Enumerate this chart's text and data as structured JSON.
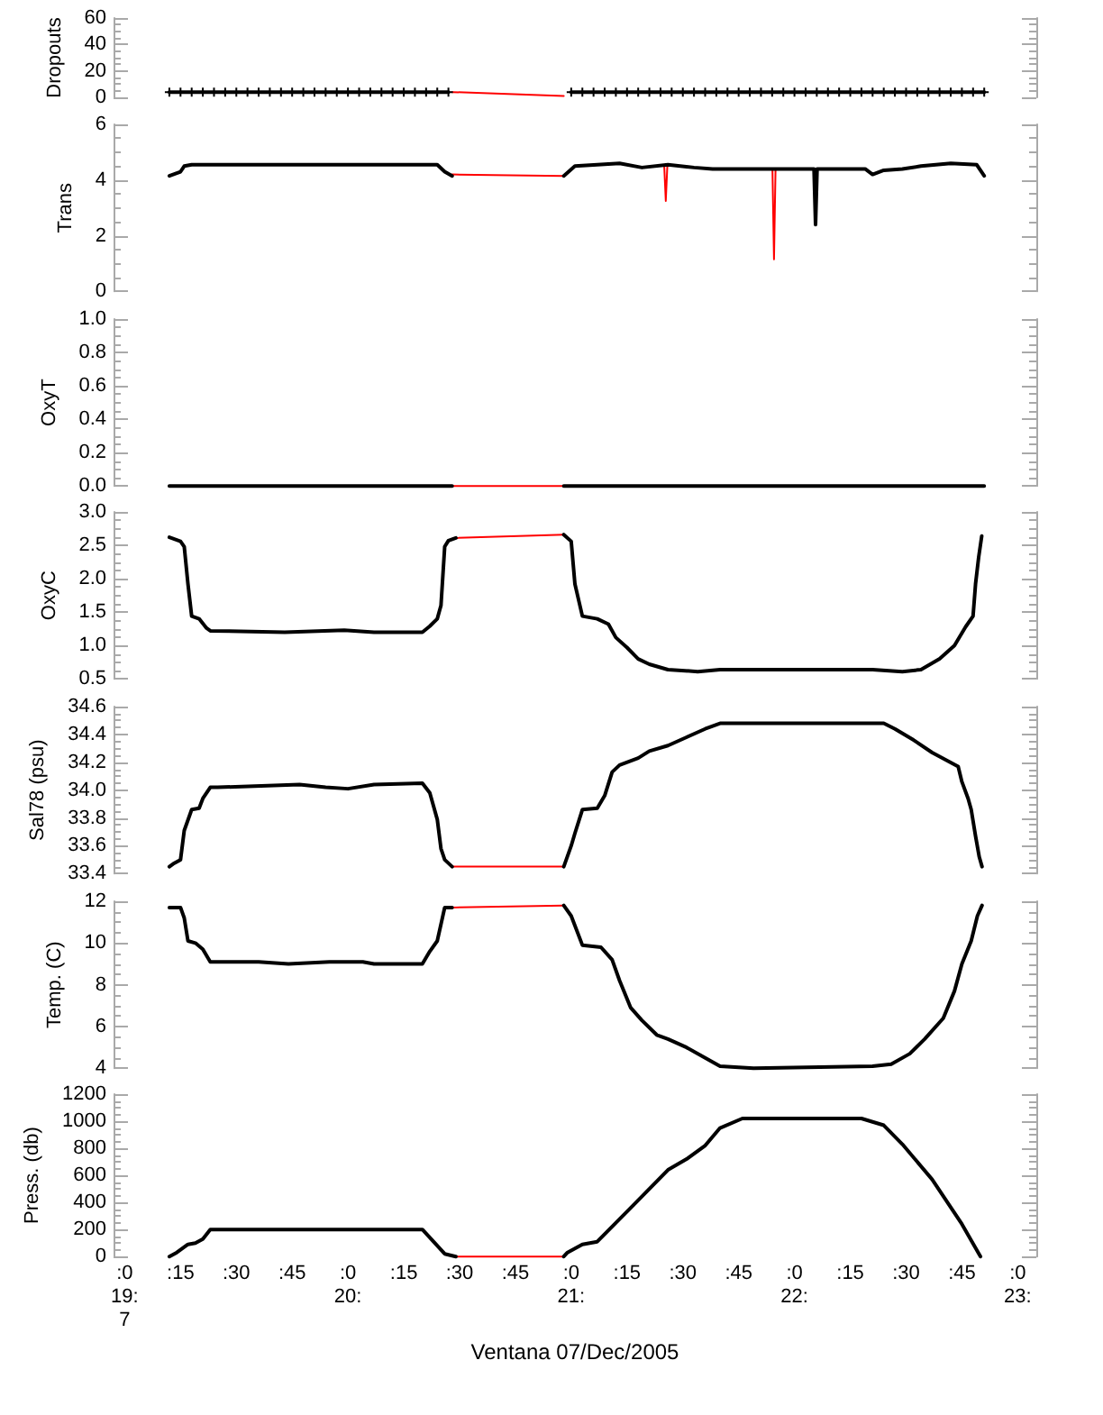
{
  "chart_data": [
    {
      "type": "line",
      "ylabel": "Dropouts",
      "xlim": [
        "2005-12-07T18:57",
        "2005-12-07T23:05"
      ],
      "ylim": [
        0,
        60
      ],
      "yticks": [
        0,
        20,
        40,
        60
      ],
      "tick_labels": "y",
      "series": [
        {
          "color": "#ff0000",
          "x": [
            "2005-12-07T20:28",
            "2005-12-07T20:58"
          ],
          "values": [
            4,
            1
          ]
        },
        {
          "color": "#000000",
          "marker": "cross",
          "x": [
            "2005-12-07T19:12",
            "2005-12-07T19:15",
            "2005-12-07T19:18",
            "2005-12-07T19:21",
            "2005-12-07T19:24",
            "2005-12-07T19:27",
            "2005-12-07T19:30",
            "2005-12-07T19:33",
            "2005-12-07T19:36",
            "2005-12-07T19:39",
            "2005-12-07T19:42",
            "2005-12-07T19:45",
            "2005-12-07T19:48",
            "2005-12-07T19:51",
            "2005-12-07T19:54",
            "2005-12-07T19:57",
            "2005-12-07T20:00",
            "2005-12-07T20:03",
            "2005-12-07T20:06",
            "2005-12-07T20:09",
            "2005-12-07T20:12",
            "2005-12-07T20:15",
            "2005-12-07T20:18",
            "2005-12-07T20:21",
            "2005-12-07T20:24",
            "2005-12-07T20:27",
            "2005-12-07T20:42",
            "2005-12-07T21:00",
            "2005-12-07T21:03",
            "2005-12-07T21:06",
            "2005-12-07T21:09",
            "2005-12-07T21:12",
            "2005-12-07T21:15",
            "2005-12-07T21:18",
            "2005-12-07T21:21",
            "2005-12-07T21:24",
            "2005-12-07T21:27",
            "2005-12-07T21:30",
            "2005-12-07T21:33",
            "2005-12-07T21:36",
            "2005-12-07T21:39",
            "2005-12-07T21:42",
            "2005-12-07T21:45",
            "2005-12-07T21:48",
            "2005-12-07T21:51",
            "2005-12-07T21:54",
            "2005-12-07T21:57",
            "2005-12-07T22:00",
            "2005-12-07T22:03",
            "2005-12-07T22:06",
            "2005-12-07T22:09",
            "2005-12-07T22:12",
            "2005-12-07T22:15",
            "2005-12-07T22:18",
            "2005-12-07T22:21",
            "2005-12-07T22:24",
            "2005-12-07T22:27",
            "2005-12-07T22:30",
            "2005-12-07T22:33",
            "2005-12-07T22:36",
            "2005-12-07T22:39",
            "2005-12-07T22:42",
            "2005-12-07T22:45",
            "2005-12-07T22:48",
            "2005-12-07T22:51"
          ],
          "values": [
            4,
            4,
            4,
            4,
            4,
            4,
            4,
            4,
            4,
            4,
            4,
            4,
            4,
            4,
            4,
            4,
            4,
            4,
            4,
            4,
            4,
            4,
            4,
            4,
            4,
            4,
            null,
            4,
            4,
            4,
            4,
            4,
            4,
            4,
            4,
            4,
            4,
            4,
            4,
            4,
            4,
            4,
            4,
            4,
            4,
            4,
            4,
            4,
            4,
            4,
            4,
            4,
            4,
            4,
            4,
            4,
            4,
            4,
            4,
            4,
            4,
            4,
            4,
            4,
            4
          ]
        }
      ]
    },
    {
      "type": "line",
      "ylabel": "Trans",
      "xlim": [
        "2005-12-07T18:57",
        "2005-12-07T23:05"
      ],
      "ylim": [
        0,
        6
      ],
      "yticks": [
        0,
        2,
        4,
        6
      ],
      "tick_labels": "y",
      "series": [
        {
          "color": "#ff0000",
          "x": [
            "2005-12-07T20:28",
            "2005-12-07T20:58",
            "2005-12-07T21:12",
            "2005-12-07T21:25:00",
            "2005-12-07T21:25:25",
            "2005-12-07T21:25:50",
            "2005-12-07T21:40",
            "2005-12-07T21:54:05",
            "2005-12-07T21:54:30",
            "2005-12-07T21:54:55"
          ],
          "values": [
            4.2,
            4.15,
            null,
            4.5,
            3.25,
            4.5,
            null,
            4.4,
            1.15,
            4.4
          ]
        },
        {
          "color": "#000000",
          "x": [
            "2005-12-07T19:12",
            "2005-12-07T19:15",
            "2005-12-07T19:16",
            "2005-12-07T19:18",
            "2005-12-07T20:24",
            "2005-12-07T20:26",
            "2005-12-07T20:28",
            "2005-12-07T20:42",
            "2005-12-07T20:58",
            "2005-12-07T21:01",
            "2005-12-07T21:13",
            "2005-12-07T21:19",
            "2005-12-07T21:26",
            "2005-12-07T21:33",
            "2005-12-07T21:38",
            "2005-12-07T21:50",
            "2005-12-07T21:55",
            "2005-12-07T22:05:15",
            "2005-12-07T22:05:40",
            "2005-12-07T22:06:05",
            "2005-12-07T22:10",
            "2005-12-07T22:19",
            "2005-12-07T22:21",
            "2005-12-07T22:24",
            "2005-12-07T22:29",
            "2005-12-07T22:34",
            "2005-12-07T22:42",
            "2005-12-07T22:49",
            "2005-12-07T22:51"
          ],
          "values": [
            4.15,
            4.3,
            4.5,
            4.55,
            4.55,
            4.3,
            4.15,
            null,
            4.15,
            4.5,
            4.6,
            4.45,
            4.55,
            4.45,
            4.4,
            4.4,
            4.4,
            4.4,
            2.4,
            4.4,
            4.4,
            4.4,
            4.2,
            4.35,
            4.4,
            4.5,
            4.6,
            4.55,
            4.15
          ]
        }
      ]
    },
    {
      "type": "line",
      "ylabel": "OxyT",
      "xlim": [
        "2005-12-07T18:57",
        "2005-12-07T23:05"
      ],
      "ylim": [
        0,
        1
      ],
      "yticks": [
        {
          "value": 0,
          "label": "0.0"
        },
        0.2,
        0.4,
        0.6,
        0.8,
        {
          "value": 1,
          "label": "1.0"
        }
      ],
      "tick_labels": "y",
      "series": [
        {
          "color": "#ff0000",
          "x": [
            "2005-12-07T20:28",
            "2005-12-07T20:58"
          ],
          "values": [
            0,
            0
          ]
        },
        {
          "color": "#000000",
          "x": [
            "2005-12-07T19:12",
            "2005-12-07T20:28",
            "2005-12-07T20:42",
            "2005-12-07T20:58",
            "2005-12-07T22:51"
          ],
          "values": [
            0,
            0,
            null,
            0,
            0
          ]
        }
      ]
    },
    {
      "type": "line",
      "ylabel": "OxyC",
      "xlim": [
        "2005-12-07T18:57",
        "2005-12-07T23:05"
      ],
      "ylim": [
        0.5,
        3
      ],
      "yticks": [
        0.5,
        {
          "value": 1,
          "label": "1.0"
        },
        1.5,
        {
          "value": 2,
          "label": "2.0"
        },
        2.5,
        {
          "value": 3,
          "label": "3.0"
        }
      ],
      "tick_labels": "y",
      "series": [
        {
          "color": "#ff0000",
          "x": [
            "2005-12-07T20:29",
            "2005-12-07T20:58"
          ],
          "values": [
            2.61,
            2.66
          ]
        },
        {
          "color": "#000000",
          "x": [
            "2005-12-07T19:12",
            "2005-12-07T19:15",
            "2005-12-07T19:16",
            "2005-12-07T19:17",
            "2005-12-07T19:18",
            "2005-12-07T19:20",
            "2005-12-07T19:22",
            "2005-12-07T19:23",
            "2005-12-07T19:43",
            "2005-12-07T19:59",
            "2005-12-07T20:07",
            "2005-12-07T20:20",
            "2005-12-07T20:22",
            "2005-12-07T20:24",
            "2005-12-07T20:25",
            "2005-12-07T20:26",
            "2005-12-07T20:27",
            "2005-12-07T20:29",
            "2005-12-07T20:42",
            "2005-12-07T20:58",
            "2005-12-07T21:00",
            "2005-12-07T21:01",
            "2005-12-07T21:03",
            "2005-12-07T21:07",
            "2005-12-07T21:10",
            "2005-12-07T21:12",
            "2005-12-07T21:15",
            "2005-12-07T21:18",
            "2005-12-07T21:21",
            "2005-12-07T21:26",
            "2005-12-07T21:34",
            "2005-12-07T21:40",
            "2005-12-07T22:21",
            "2005-12-07T22:29",
            "2005-12-07T22:34",
            "2005-12-07T22:39",
            "2005-12-07T22:43",
            "2005-12-07T22:46",
            "2005-12-07T22:48",
            "2005-12-07T22:48:40",
            "2005-12-07T22:49:30",
            "2005-12-07T22:50:20"
          ],
          "values": [
            2.62,
            2.56,
            2.48,
            1.92,
            1.44,
            1.4,
            1.26,
            1.22,
            1.2,
            1.23,
            1.2,
            1.2,
            1.29,
            1.4,
            1.6,
            2.48,
            2.57,
            2.61,
            null,
            2.66,
            2.56,
            1.92,
            1.44,
            1.4,
            1.32,
            1.12,
            0.97,
            0.8,
            0.72,
            0.64,
            0.61,
            0.64,
            0.64,
            0.61,
            0.64,
            0.8,
            1,
            1.28,
            1.44,
            1.92,
            2.32,
            2.64
          ]
        }
      ]
    },
    {
      "type": "line",
      "ylabel": "Sal78 (psu)",
      "xlim": [
        "2005-12-07T18:57",
        "2005-12-07T23:05"
      ],
      "ylim": [
        33.4,
        34.6
      ],
      "yticks": [
        33.4,
        33.6,
        33.8,
        {
          "value": 34,
          "label": "34.0"
        },
        34.2,
        34.4,
        34.6
      ],
      "tick_labels": "y",
      "series": [
        {
          "color": "#ff0000",
          "x": [
            "2005-12-07T20:28",
            "2005-12-07T20:58"
          ],
          "values": [
            33.45,
            33.45
          ]
        },
        {
          "color": "#000000",
          "x": [
            "2005-12-07T19:12",
            "2005-12-07T19:13",
            "2005-12-07T19:15",
            "2005-12-07T19:16",
            "2005-12-07T19:18",
            "2005-12-07T19:20",
            "2005-12-07T19:21",
            "2005-12-07T19:23",
            "2005-12-07T19:25",
            "2005-12-07T19:47",
            "2005-12-07T19:54",
            "2005-12-07T20:00",
            "2005-12-07T20:07",
            "2005-12-07T20:20",
            "2005-12-07T20:22",
            "2005-12-07T20:24",
            "2005-12-07T20:25",
            "2005-12-07T20:26",
            "2005-12-07T20:28",
            "2005-12-07T20:42",
            "2005-12-07T20:58",
            "2005-12-07T21:00",
            "2005-12-07T21:01",
            "2005-12-07T21:03",
            "2005-12-07T21:07",
            "2005-12-07T21:09",
            "2005-12-07T21:11",
            "2005-12-07T21:13",
            "2005-12-07T21:18",
            "2005-12-07T21:21",
            "2005-12-07T21:26",
            "2005-12-07T21:31",
            "2005-12-07T21:36",
            "2005-12-07T21:40",
            "2005-12-07T22:24",
            "2005-12-07T22:27",
            "2005-12-07T22:32",
            "2005-12-07T22:37",
            "2005-12-07T22:44",
            "2005-12-07T22:45",
            "2005-12-07T22:46:40",
            "2005-12-07T22:47:30",
            "2005-12-07T22:48:40",
            "2005-12-07T22:49:40",
            "2005-12-07T22:50:25"
          ],
          "values": [
            33.45,
            33.47,
            33.5,
            33.71,
            33.86,
            33.87,
            33.94,
            34.02,
            34.02,
            34.04,
            34.02,
            34.01,
            34.04,
            34.05,
            33.98,
            33.79,
            33.58,
            33.5,
            33.45,
            null,
            33.45,
            33.6,
            33.69,
            33.86,
            33.87,
            33.96,
            34.13,
            34.18,
            34.23,
            34.28,
            34.32,
            34.38,
            34.44,
            34.48,
            34.48,
            34.44,
            34.36,
            34.27,
            34.17,
            34.06,
            33.94,
            33.86,
            33.67,
            33.52,
            33.45
          ]
        }
      ]
    },
    {
      "type": "line",
      "ylabel": "Temp. (C)",
      "xlim": [
        "2005-12-07T18:57",
        "2005-12-07T23:05"
      ],
      "ylim": [
        4,
        12
      ],
      "yticks": [
        4,
        6,
        8,
        10,
        12
      ],
      "tick_labels": "y",
      "series": [
        {
          "color": "#ff0000",
          "x": [
            "2005-12-07T20:28",
            "2005-12-07T20:58"
          ],
          "values": [
            11.7,
            11.8
          ]
        },
        {
          "color": "#000000",
          "x": [
            "2005-12-07T19:12",
            "2005-12-07T19:15",
            "2005-12-07T19:16",
            "2005-12-07T19:17",
            "2005-12-07T19:19",
            "2005-12-07T19:21",
            "2005-12-07T19:23",
            "2005-12-07T19:36",
            "2005-12-07T19:44",
            "2005-12-07T19:55",
            "2005-12-07T20:04",
            "2005-12-07T20:07",
            "2005-12-07T20:20",
            "2005-12-07T20:22",
            "2005-12-07T20:24",
            "2005-12-07T20:26",
            "2005-12-07T20:28",
            "2005-12-07T20:42",
            "2005-12-07T20:58",
            "2005-12-07T21:00",
            "2005-12-07T21:03",
            "2005-12-07T21:08",
            "2005-12-07T21:11",
            "2005-12-07T21:13",
            "2005-12-07T21:16",
            "2005-12-07T21:19",
            "2005-12-07T21:23",
            "2005-12-07T21:26",
            "2005-12-07T21:31",
            "2005-12-07T21:36",
            "2005-12-07T21:40",
            "2005-12-07T21:49",
            "2005-12-07T22:21",
            "2005-12-07T22:26",
            "2005-12-07T22:31",
            "2005-12-07T22:35",
            "2005-12-07T22:40",
            "2005-12-07T22:43",
            "2005-12-07T22:45",
            "2005-12-07T22:47:30",
            "2005-12-07T22:49:10",
            "2005-12-07T22:50:25"
          ],
          "values": [
            11.7,
            11.7,
            11.2,
            10.1,
            10,
            9.7,
            9.1,
            9.1,
            9,
            9.1,
            9.1,
            9,
            9,
            9.6,
            10.1,
            11.7,
            11.7,
            null,
            11.8,
            11.3,
            9.9,
            9.8,
            9.2,
            8.2,
            6.9,
            6.3,
            5.6,
            5.4,
            5,
            4.5,
            4.1,
            4,
            4.1,
            4.2,
            4.7,
            5.4,
            6.4,
            7.7,
            9,
            10.1,
            11.3,
            11.8
          ]
        }
      ]
    },
    {
      "type": "line",
      "ylabel": "Press. (db)",
      "xlabel": "Ventana 07/Dec/2005",
      "xlim": [
        "2005-12-07T18:57",
        "2005-12-07T23:05"
      ],
      "xticks": [
        {
          "value": "2005-12-07T19:00",
          "label": ":0\n19:\n7"
        },
        {
          "value": "2005-12-07T19:15",
          "label": ":15"
        },
        {
          "value": "2005-12-07T19:30",
          "label": ":30"
        },
        {
          "value": "2005-12-07T19:45",
          "label": ":45"
        },
        {
          "value": "2005-12-07T20:00",
          "label": ":0\n20:"
        },
        {
          "value": "2005-12-07T20:15",
          "label": ":15"
        },
        {
          "value": "2005-12-07T20:30",
          "label": ":30"
        },
        {
          "value": "2005-12-07T20:45",
          "label": ":45"
        },
        {
          "value": "2005-12-07T21:00",
          "label": ":0\n21:"
        },
        {
          "value": "2005-12-07T21:15",
          "label": ":15"
        },
        {
          "value": "2005-12-07T21:30",
          "label": ":30"
        },
        {
          "value": "2005-12-07T21:45",
          "label": ":45"
        },
        {
          "value": "2005-12-07T22:00",
          "label": ":0\n22:"
        },
        {
          "value": "2005-12-07T22:15",
          "label": ":15"
        },
        {
          "value": "2005-12-07T22:30",
          "label": ":30"
        },
        {
          "value": "2005-12-07T22:45",
          "label": ":45"
        },
        {
          "value": "2005-12-07T23:00",
          "label": ":0\n23:"
        }
      ],
      "ylim": [
        0,
        1200
      ],
      "yticks": [
        0,
        200,
        400,
        600,
        800,
        1000,
        1200
      ],
      "series": [
        {
          "color": "#ff0000",
          "x": [
            "2005-12-07T20:29",
            "2005-12-07T20:58"
          ],
          "values": [
            0,
            0
          ]
        },
        {
          "color": "#000000",
          "x": [
            "2005-12-07T19:12",
            "2005-12-07T19:14",
            "2005-12-07T19:17",
            "2005-12-07T19:19",
            "2005-12-07T19:21",
            "2005-12-07T19:23",
            "2005-12-07T20:20",
            "2005-12-07T20:26",
            "2005-12-07T20:29",
            "2005-12-07T20:42",
            "2005-12-07T20:58",
            "2005-12-07T20:59",
            "2005-12-07T21:03",
            "2005-12-07T21:07",
            "2005-12-07T21:16",
            "2005-12-07T21:26",
            "2005-12-07T21:31",
            "2005-12-07T21:36",
            "2005-12-07T21:40",
            "2005-12-07T21:46",
            "2005-12-07T22:18",
            "2005-12-07T22:24",
            "2005-12-07T22:29",
            "2005-12-07T22:37",
            "2005-12-07T22:45",
            "2005-12-07T22:50"
          ],
          "values": [
            0,
            30,
            90,
            100,
            130,
            200,
            200,
            20,
            0,
            null,
            0,
            30,
            90,
            110,
            360,
            640,
            720,
            820,
            950,
            1020,
            1020,
            970,
            830,
            570,
            240,
            0
          ]
        }
      ]
    }
  ]
}
